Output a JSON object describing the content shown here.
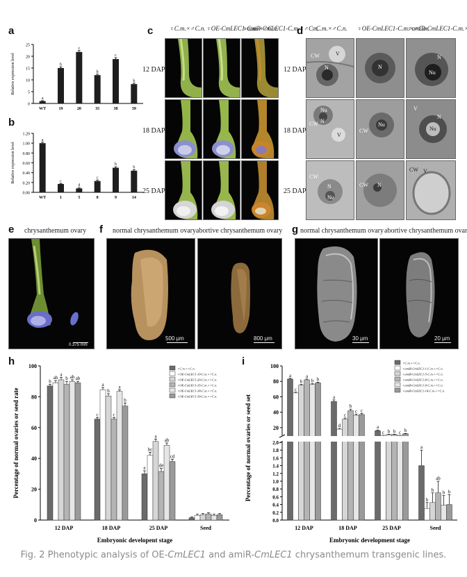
{
  "panels": {
    "a": "a",
    "b": "b",
    "c": "c",
    "d": "d",
    "e": "e",
    "f": "f",
    "g": "g",
    "h": "h",
    "i": "i"
  },
  "col_headers_c": [
    "♀C.m.×♂C.n.",
    "♀OE-CmLEC1-C.m.×♂C.n.",
    "♀amiR-CmLEC1-C.m.×♂C.n."
  ],
  "col_headers_d": [
    "♀C.m.×♂C.n.",
    "♀OE-CmLEC1-C.m.×♂C.n.",
    "♀amiR-CmLEC1-C.m.×♂C.n."
  ],
  "row_labels": [
    "12 DAP",
    "18 DAP",
    "25 DAP"
  ],
  "tem_labels": {
    "r1c1": [
      "CW",
      "V",
      "N"
    ],
    "r1c2": [
      "N"
    ],
    "r1c3": [
      "N",
      "Nu"
    ],
    "r2c1": [
      "Nu",
      "N",
      "CW",
      "V"
    ],
    "r2c2": [
      "CW",
      "Nu"
    ],
    "r2c3": [
      "V",
      "N",
      "Nu"
    ],
    "r3c1": [
      "CW",
      "N",
      "Nu"
    ],
    "r3c2": [
      "CW",
      "N"
    ],
    "r3c3": [
      "CW",
      "V"
    ]
  },
  "panel_e": {
    "title": "chrysanthemum ovary",
    "scale": "0.375 mm"
  },
  "panel_f": {
    "title_left": "normal chrysanthemum ovary",
    "title_right": "abortive chrysanthemum ovary",
    "scale_left": "500 μm",
    "scale_right": "800 μm"
  },
  "panel_g": {
    "title_left": "normal chrysanthemum ovary",
    "title_right": "abortive chrysanthemum ovary",
    "scale_left": "30 μm",
    "scale_right": "20 μm"
  },
  "caption": {
    "prefix": "Fig. 2 Phenotypic analysis of OE-",
    "gene1": "CmLEC1",
    "middle": " and amiR-",
    "gene2": "CmLEC1",
    "suffix": " chrysanthemum transgenic lines."
  },
  "chart_data": [
    {
      "id": "a",
      "type": "bar",
      "ylabel": "Relative expression level",
      "categories": [
        "WT",
        "19",
        "20",
        "35",
        "38",
        "39"
      ],
      "values": [
        1.0,
        15.0,
        21.8,
        12.0,
        18.8,
        8.2
      ],
      "errors": [
        0.2,
        0.5,
        0.6,
        0.4,
        0.6,
        0.4
      ],
      "letters": [
        "a",
        "b",
        "c",
        "b",
        "c",
        "b"
      ],
      "ylim": [
        0,
        25
      ],
      "yticks": [
        "0",
        "5",
        "10",
        "15",
        "20",
        "25"
      ]
    },
    {
      "id": "b",
      "type": "bar",
      "ylabel": "Relative expression level",
      "categories": [
        "WT",
        "1",
        "5",
        "8",
        "9",
        "14"
      ],
      "values": [
        1.0,
        0.17,
        0.08,
        0.23,
        0.5,
        0.44
      ],
      "errors": [
        0.02,
        0.01,
        0.01,
        0.02,
        0.02,
        0.02
      ],
      "letters": [
        "a",
        "c",
        "d",
        "c",
        "b",
        "b"
      ],
      "ylim": [
        0,
        1.2
      ],
      "yticks": [
        "0.00",
        "0.20",
        "0.40",
        "0.60",
        "0.80",
        "1.00",
        "1.20"
      ]
    },
    {
      "id": "h",
      "type": "bar",
      "xlabel": "Embryonic developent stage",
      "ylabel": "Percentage of normal ovaries or seed rate",
      "categories": [
        "12 DAP",
        "18 DAP",
        "25 DAP",
        "Seed"
      ],
      "ylim": [
        0,
        100
      ],
      "yticks": [
        "0",
        "20",
        "40",
        "60",
        "80",
        "100"
      ],
      "series": [
        {
          "name": "♀C.m.×♂C.n.",
          "values": [
            87,
            65.5,
            30,
            1.5
          ],
          "errors": [
            1,
            1,
            2,
            0.5
          ],
          "letters": [
            "b",
            "c",
            "e",
            ""
          ]
        },
        {
          "name": "♀OE-CmLEC1-19-C.m.×♂C.n.",
          "values": [
            89,
            84.5,
            42,
            3
          ],
          "errors": [
            1.5,
            1.5,
            2,
            0.8
          ],
          "letters": [
            "ab",
            "a",
            "bc",
            ""
          ]
        },
        {
          "name": "♀OE-CmLEC1-20-C.m.×♂C.n.",
          "values": [
            91,
            80.5,
            51,
            3.5
          ],
          "errors": [
            1.5,
            1.5,
            1.5,
            0.8
          ],
          "letters": [
            "a",
            "b",
            "a",
            ""
          ]
        },
        {
          "name": "♀OE-CmLEC1-35-C.m.×♂C.n.",
          "values": [
            88,
            65.5,
            31.5,
            4
          ],
          "errors": [
            2,
            1,
            2,
            0.8
          ],
          "letters": [
            "b",
            "c",
            "de",
            ""
          ]
        },
        {
          "name": "♀OE-CmLEC1-38-C.m.×♂C.n.",
          "values": [
            90,
            83.5,
            48.5,
            3
          ],
          "errors": [
            1,
            1,
            1.5,
            0.8
          ],
          "letters": [
            "ab",
            "a",
            "ab",
            ""
          ]
        },
        {
          "name": "♀OE-CmLEC1-39-C.m.×♂C.n.",
          "values": [
            89,
            74,
            38,
            3.5
          ],
          "errors": [
            1,
            2,
            1.5,
            0.8
          ],
          "letters": [
            "ab",
            "b",
            "cd",
            ""
          ]
        }
      ]
    },
    {
      "id": "i",
      "type": "bar",
      "xlabel": "Embryonic development stage",
      "ylabel": "Percentage of normal ovaries or seed set",
      "categories": [
        "12 DAP",
        "18 DAP",
        "25 DAP",
        "Seed"
      ],
      "axis_break": [
        2.0,
        10
      ],
      "ylim_upper": [
        10,
        100
      ],
      "ylim_lower": [
        0,
        2.0
      ],
      "yticks_upper": [
        "20",
        "40",
        "60",
        "80",
        "100"
      ],
      "yticks_lower": [
        "0.0",
        "0.2",
        "0.4",
        "0.6",
        "0.8",
        "1.0",
        "1.2",
        "1.4",
        "1.6",
        "1.8",
        "2.0"
      ],
      "series": [
        {
          "name": "♀C.m.×♂C.n.",
          "values": [
            83,
            54,
            16,
            1.4
          ],
          "errors": [
            1,
            2,
            1,
            0.4
          ],
          "letters": [
            "a",
            "a",
            "a",
            "a"
          ]
        },
        {
          "name": "♀amiR-CmLEC1-1-C.m.×♂C.n.",
          "values": [
            65,
            18,
            8,
            0.3
          ],
          "errors": [
            1,
            1,
            0.5,
            0.15
          ],
          "letters": [
            "c",
            "d",
            "c",
            "b"
          ]
        },
        {
          "name": "♀amiR-CmLEC1-5-C.m.×♂C.n.",
          "values": [
            75,
            31,
            11,
            0.45
          ],
          "errors": [
            1,
            1.5,
            0.5,
            0.25
          ],
          "letters": [
            "b",
            "c",
            "b",
            "b"
          ]
        },
        {
          "name": "♀amiR-CmLEC1-8-C.m.×♂C.n.",
          "values": [
            82,
            42,
            11,
            0.7
          ],
          "errors": [
            1,
            2,
            0.5,
            0.3
          ],
          "letters": [
            "a",
            "b",
            "b",
            "ab"
          ]
        },
        {
          "name": "♀amiR-CmLEC1-9-C.m.×♂C.n.",
          "values": [
            76,
            36,
            8,
            0.38
          ],
          "errors": [
            1,
            1.5,
            0.5,
            0.25
          ],
          "letters": [
            "b",
            "c",
            "c",
            "b"
          ]
        },
        {
          "name": "♀amiR-CmLEC1-14-C.m.×♂C.n.",
          "values": [
            78,
            37,
            12,
            0.4
          ],
          "errors": [
            1,
            1.5,
            0.5,
            0.25
          ],
          "letters": [
            "b",
            "c",
            "b",
            "b"
          ]
        }
      ]
    }
  ]
}
